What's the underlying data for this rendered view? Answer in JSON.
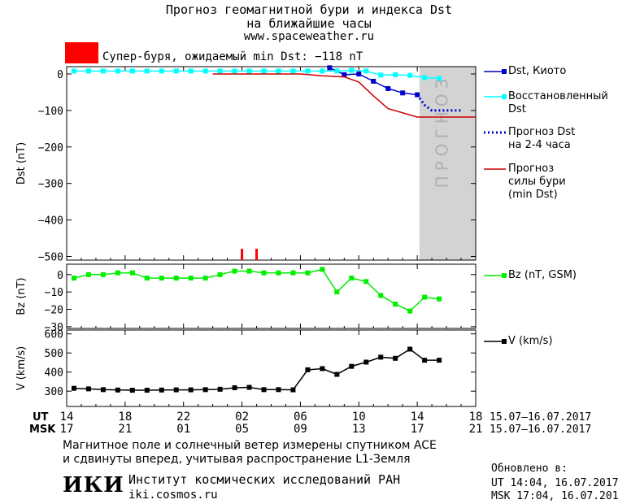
{
  "header": {
    "title_line1": "Прогноз геомагнитной бури и индекса Dst",
    "title_line2": "на ближайшие часы",
    "site": "www.spaceweather.ru"
  },
  "storm_banner": {
    "text": "Супер-буря, ожидаемый min Dst: −118 nT",
    "color": "#ff0000"
  },
  "footer": {
    "line1": "Магнитное поле и солнечный ветер измерены спутником ACE",
    "line2": "и сдвинуты вперед, учитывая распространение L1-Земля",
    "logo": "ИКИ",
    "institute": "Институт космических исследований РАН",
    "institute_site": "iki.cosmos.ru",
    "updated_label": "Обновлено в:",
    "updated_ut": "UT  14:04, 16.07.2017",
    "updated_msk": "MSK 17:04, 16.07.2017"
  },
  "chart_data": [
    {
      "type": "line",
      "ylabel": "Dst (nT)",
      "ylim": [
        -510,
        20
      ],
      "yticks": [
        0,
        -100,
        -200,
        -300,
        -400,
        -500
      ],
      "forecast_label": "ПРОГНОЗ",
      "forecast_x_range": [
        14.15,
        18.0
      ],
      "series": [
        {
          "name": "Dst, Киото",
          "color": "#0000cc",
          "marker": "square",
          "x": [
            8.0,
            9.0,
            10.0,
            11.0,
            12.0,
            13.0,
            14.0
          ],
          "y": [
            17,
            -2,
            0,
            -20,
            -40,
            -52,
            -57
          ]
        },
        {
          "name": "Восстановленный Dst",
          "color": "#00ffff",
          "marker": "square",
          "x": [
            -0.5,
            0,
            1,
            2,
            3,
            4,
            5,
            6,
            7,
            8,
            9,
            10,
            11,
            12,
            13,
            14,
            15,
            16,
            17,
            18,
            19,
            20,
            21,
            22,
            23,
            24
          ],
          "y": [
            8,
            8,
            8,
            8,
            8,
            8,
            8,
            8,
            8,
            8,
            8,
            8,
            8,
            8,
            8,
            8,
            8,
            8,
            8,
            10,
            8,
            -3,
            -2,
            -4,
            -10,
            -12
          ]
        },
        {
          "name": "Прогноз Dst на 2-4 часа",
          "color": "#0000cc",
          "style": "dotted",
          "x": [
            14.0,
            14.5,
            15.0,
            16.0,
            17.0
          ],
          "y": [
            -57,
            -85,
            -100,
            -100,
            -100
          ]
        },
        {
          "name": "Прогноз силы бури (min Dst)",
          "color": "#cc0000",
          "style": "solid",
          "x": [
            0,
            6,
            7.5,
            9,
            10,
            11,
            12,
            14,
            15,
            18
          ],
          "y": [
            0,
            0,
            -5,
            -8,
            -22,
            -60,
            -95,
            -118,
            -118,
            -118
          ]
        }
      ],
      "markers": {
        "x": [
          2.0,
          3.0
        ],
        "color": "#ff0000"
      }
    },
    {
      "type": "line",
      "ylabel": "Bz (nT)",
      "ylim": [
        -31,
        6
      ],
      "yticks": [
        0,
        -10,
        -20,
        -30
      ],
      "series": [
        {
          "name": "Bz (nT, GSM)",
          "color": "#00ee00",
          "marker": "square",
          "x": [
            14.0,
            15.0,
            16.0,
            17.0,
            18.0,
            19.0,
            20.0,
            21.0,
            22.0,
            23.0,
            0,
            1,
            2,
            3,
            4,
            5,
            6,
            7,
            8,
            9,
            10,
            11,
            12,
            13,
            14,
            15
          ],
          "y": [
            -2,
            0,
            0,
            1,
            1,
            -2,
            -2,
            -2,
            -2,
            -2,
            0,
            2,
            2,
            1,
            1,
            1,
            1,
            3,
            -10,
            -2,
            -4,
            -12,
            -17,
            -21,
            -13,
            -14
          ]
        }
      ]
    },
    {
      "type": "line",
      "ylabel": "V (km/s)",
      "ylim": [
        220,
        620
      ],
      "yticks": [
        300,
        400,
        500,
        600
      ],
      "series": [
        {
          "name": "V (km/s)",
          "color": "#000000",
          "marker": "square",
          "x": [
            14,
            15,
            16,
            17,
            18,
            19,
            20,
            21,
            22,
            23,
            0,
            1,
            2,
            3,
            4,
            5,
            6,
            7,
            8,
            9,
            10,
            11,
            12,
            13,
            14,
            15
          ],
          "y": [
            315,
            312,
            308,
            306,
            305,
            305,
            306,
            307,
            307,
            308,
            310,
            318,
            320,
            308,
            308,
            307,
            412,
            418,
            388,
            430,
            452,
            478,
            472,
            520,
            462,
            462
          ]
        }
      ]
    }
  ],
  "x_axis": {
    "ut_label": "UT",
    "msk_label": "MSK",
    "ut_ticks": [
      "14",
      "18",
      "22",
      "02",
      "06",
      "10",
      "14",
      "18"
    ],
    "msk_ticks": [
      "17",
      "21",
      "01",
      "05",
      "09",
      "13",
      "17",
      "21"
    ],
    "ut_dates": "15.07–16.07.2017",
    "msk_dates": "15.07–16.07.2017"
  },
  "legend": {
    "dst_kyoto": "Dst, Киото",
    "dst_recon_1": "Восстановленный",
    "dst_recon_2": "Dst",
    "dst_fc_1": "Прогноз Dst",
    "dst_fc_2": "на 2-4 часа",
    "storm_1": "Прогноз",
    "storm_2": "силы бури",
    "storm_3": "(min Dst)",
    "bz": "Bz (nT, GSM)",
    "v": "V (km/s)"
  }
}
